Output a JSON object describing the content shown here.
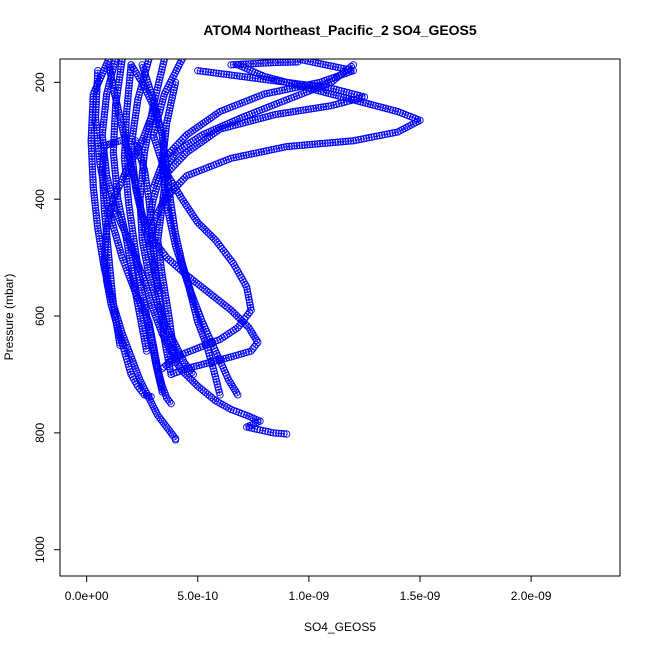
{
  "chart_data": {
    "type": "scatter",
    "title": "ATOM4 Northeast_Pacific_2 SO4_GEOS5",
    "xlabel": "SO4_GEOS5",
    "ylabel": "Pressure (mbar)",
    "xlim": [
      -1.2e-10,
      2.4e-09
    ],
    "ylim": [
      1045,
      160
    ],
    "y_reversed": true,
    "x_ticks": [
      0,
      5e-10,
      1e-09,
      1.5e-09,
      2e-09
    ],
    "x_tick_labels": [
      "0.0e+00",
      "5.0e-10",
      "1.0e-09",
      "1.5e-09",
      "2.0e-09"
    ],
    "y_ticks": [
      200,
      400,
      600,
      800,
      1000
    ],
    "y_tick_labels": [
      "200",
      "400",
      "600",
      "800",
      "1000"
    ],
    "grid": false,
    "legend": "none",
    "marker": "open-circle",
    "color": "#0000ff",
    "series": [
      {
        "x": [
          1e-10,
          3e-11,
          2e-11,
          3e-11,
          5e-11,
          8e-11,
          1.2e-10,
          1.6e-10,
          2e-10,
          2.4e-10,
          2.8e-10,
          3.2e-10,
          3.6e-10,
          3.8e-10,
          4e-10,
          4e-10
        ],
        "y": [
          160,
          220,
          300,
          380,
          450,
          520,
          580,
          630,
          670,
          710,
          740,
          770,
          790,
          800,
          810,
          812
        ]
      },
      {
        "x": [
          1.3e-10,
          9e-11,
          7e-11,
          9e-11,
          1.3e-10,
          2e-10,
          2.6e-10,
          3e-10,
          3.4e-10,
          3.8e-10,
          4.2e-10,
          5e-10,
          5.8e-10,
          6.5e-10,
          7.2e-10,
          7.8e-10,
          7.2e-10,
          7.8e-10,
          8.4e-10,
          9e-10
        ],
        "y": [
          160,
          220,
          290,
          360,
          420,
          480,
          540,
          590,
          630,
          660,
          690,
          720,
          745,
          760,
          770,
          780,
          790,
          795,
          800,
          802
        ]
      },
      {
        "x": [
          2.8e-10,
          2.3e-10,
          2e-10,
          2.2e-10,
          2.5e-10,
          3e-10,
          3.6e-10,
          4.5e-10,
          5.5e-10,
          6.5e-10,
          7.3e-10,
          7.7e-10,
          7.4e-10,
          6.5e-10,
          5.5e-10,
          4.5e-10,
          3.8e-10
        ],
        "y": [
          160,
          230,
          310,
          380,
          430,
          470,
          500,
          530,
          560,
          590,
          620,
          645,
          660,
          670,
          680,
          690,
          700
        ]
      },
      {
        "x": [
          4.3e-10,
          3.5e-10,
          3e-10,
          3.5e-10,
          4.3e-10,
          5e-10,
          5.8e-10,
          6.6e-10,
          7.2e-10,
          7.4e-10,
          6.8e-10,
          6e-10,
          5e-10,
          4e-10,
          3.4e-10
        ],
        "y": [
          160,
          220,
          290,
          350,
          400,
          440,
          470,
          510,
          550,
          590,
          620,
          640,
          655,
          670,
          690
        ]
      },
      {
        "x": [
          6.8e-10,
          8e-10,
          1e-09,
          1.2e-09,
          1.4e-09,
          1.5e-09,
          1.4e-09,
          1.2e-09,
          9e-10,
          6.5e-10,
          4.5e-10,
          3.5e-10,
          3e-10,
          2.8e-10
        ],
        "y": [
          170,
          190,
          210,
          230,
          250,
          265,
          285,
          300,
          310,
          330,
          360,
          400,
          440,
          480
        ]
      },
      {
        "x": [
          1.2e-09,
          1.1e-09,
          9e-10,
          7e-10,
          5.2e-10,
          4e-10,
          3.3e-10,
          3e-10,
          2.8e-10
        ],
        "y": [
          170,
          200,
          230,
          260,
          290,
          320,
          360,
          400,
          440
        ]
      },
      {
        "x": [
          9.5e-10,
          1.2e-09,
          1.05e-09,
          8e-10,
          6e-10,
          4.5e-10,
          3.5e-10,
          3e-10
        ],
        "y": [
          160,
          180,
          200,
          220,
          250,
          290,
          330,
          380
        ]
      },
      {
        "x": [
          5e-10,
          7e-10,
          9e-10,
          1.1e-09,
          1.25e-09,
          1.1e-09,
          8.5e-10,
          6e-10,
          4.5e-10,
          3.5e-10
        ],
        "y": [
          180,
          190,
          200,
          210,
          225,
          240,
          255,
          280,
          320,
          360
        ]
      },
      {
        "x": [
          5e-11,
          4e-11,
          6e-11,
          1e-10,
          1.6e-10,
          2.2e-10,
          2.8e-10,
          3e-10,
          3.2e-10,
          3.4e-10,
          3.6e-10,
          3.8e-10
        ],
        "y": [
          180,
          260,
          340,
          420,
          500,
          560,
          610,
          650,
          690,
          720,
          740,
          750
        ]
      },
      {
        "x": [
          2e-10,
          1.8e-10,
          1.7e-10,
          1.9e-10,
          2.2e-10,
          2.5e-10,
          2.8e-10,
          3.1e-10,
          3.4e-10
        ],
        "y": [
          170,
          250,
          330,
          410,
          490,
          560,
          620,
          680,
          730
        ]
      },
      {
        "x": [
          1.6e-10,
          1.3e-10,
          1.2e-10,
          1.4e-10,
          1.8e-10,
          2.1e-10,
          2.4e-10,
          2.7e-10
        ],
        "y": [
          160,
          240,
          320,
          400,
          470,
          540,
          600,
          660
        ]
      },
      {
        "x": [
          3.5e-10,
          3e-10,
          2.6e-10,
          2.4e-10,
          2.5e-10,
          2.8e-10,
          3.2e-10,
          3.6e-10,
          4e-10,
          4.4e-10,
          4.8e-10
        ],
        "y": [
          160,
          240,
          320,
          400,
          470,
          530,
          580,
          620,
          650,
          680,
          700
        ]
      },
      {
        "x": [
          2.5e-10,
          3e-10,
          3.4e-10,
          3.6e-10,
          3.8e-10,
          4e-10,
          4.3e-10,
          4.7e-10,
          5.2e-10,
          5.8e-10,
          6.4e-10,
          6.8e-10
        ],
        "y": [
          170,
          230,
          290,
          350,
          410,
          460,
          510,
          560,
          610,
          660,
          710,
          735
        ]
      },
      {
        "x": [
          4e-10,
          3.6e-10,
          3.4e-10,
          3.6e-10,
          4e-10,
          4.6e-10,
          5e-10,
          5.4e-10,
          5.7e-10,
          6e-10
        ],
        "y": [
          200,
          270,
          340,
          410,
          480,
          550,
          610,
          650,
          690,
          735
        ]
      },
      {
        "x": [
          6.5e-10,
          7.5e-10,
          8.5e-10,
          9.5e-10
        ],
        "y": [
          170,
          168,
          166,
          165
        ]
      },
      {
        "x": [
          3e-10,
          2.5e-10,
          1.8e-10,
          1.2e-10,
          9e-11,
          8e-11,
          9e-11,
          1.1e-10,
          1.4e-10,
          1.7e-10,
          2e-10,
          2.3e-10,
          2.6e-10,
          2.9e-10
        ],
        "y": [
          250,
          300,
          350,
          400,
          450,
          500,
          540,
          580,
          620,
          660,
          700,
          720,
          735,
          738
        ]
      },
      {
        "x": [
          2.2e-10,
          2.6e-10,
          2.8e-10,
          2.9e-10,
          3e-10,
          3.1e-10,
          3.3e-10,
          3.5e-10,
          3.8e-10
        ],
        "y": [
          300,
          350,
          400,
          440,
          480,
          530,
          580,
          640,
          700
        ]
      },
      {
        "x": [
          1.5e-10,
          1.1e-10,
          8e-11,
          7e-11,
          8e-11,
          1e-10,
          1.2e-10,
          1.5e-10
        ],
        "y": [
          300,
          305,
          308,
          350,
          420,
          500,
          580,
          650
        ]
      },
      {
        "x": [
          1e-10,
          1.2e-10,
          1.5e-10,
          1.8e-10,
          2.1e-10,
          2.4e-10,
          2.7e-10,
          3e-10,
          3.3e-10
        ],
        "y": [
          170,
          210,
          260,
          310,
          360,
          410,
          460,
          510,
          560
        ]
      },
      {
        "x": [
          2e-10,
          2.5e-10,
          3e-10,
          3.4e-10,
          3.6e-10,
          3.4e-10,
          3.2e-10,
          3.4e-10,
          3.7e-10,
          4e-10
        ],
        "y": [
          170,
          200,
          240,
          290,
          350,
          410,
          470,
          530,
          600,
          680
        ]
      }
    ]
  }
}
